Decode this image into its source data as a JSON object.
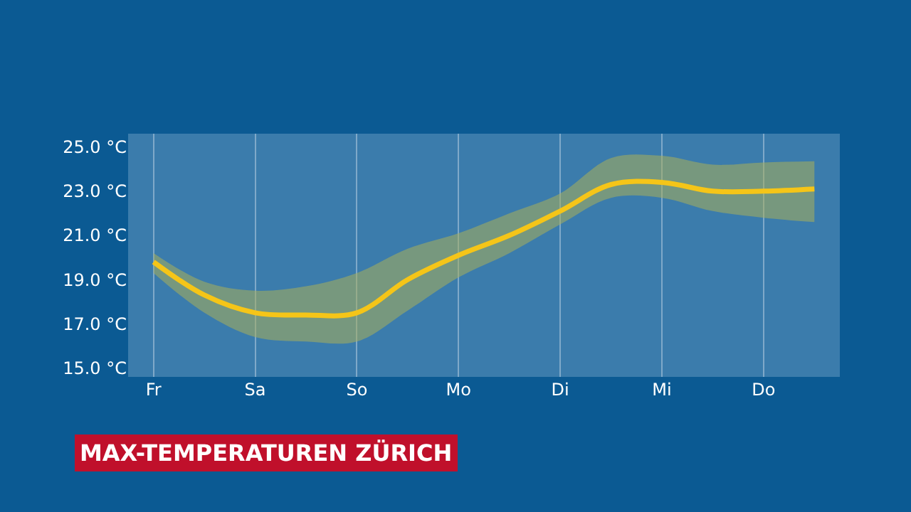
{
  "chart_data": {
    "type": "line",
    "title": "MAX-TEMPERATUREN ZÜRICH",
    "categories": [
      "Fr",
      null,
      "Sa",
      null,
      "So",
      null,
      "Mo",
      null,
      "Di",
      null,
      "Mi",
      null,
      "Do",
      null
    ],
    "series": [
      {
        "color": "#f5c518",
        "values": [
          19.8,
          18.3,
          17.5,
          17.4,
          17.5,
          19.0,
          20.1,
          21.0,
          22.1,
          23.3,
          23.4,
          23.0,
          23.0,
          23.1
        ],
        "lower": [
          19.3,
          17.5,
          16.4,
          16.2,
          16.2,
          17.6,
          19.1,
          20.2,
          21.5,
          22.7,
          22.7,
          22.1,
          21.8,
          21.6
        ],
        "upper": [
          20.2,
          18.9,
          18.5,
          18.7,
          19.3,
          20.4,
          21.1,
          22.0,
          22.9,
          24.5,
          24.6,
          24.2,
          24.3,
          24.35
        ]
      }
    ],
    "ylim": [
      14.6,
      25.6
    ],
    "yticks": [
      {
        "value": 15,
        "label": "15.0 °C"
      },
      {
        "value": 17,
        "label": "17.0 °C"
      },
      {
        "value": 19,
        "label": "19.0 °C"
      },
      {
        "value": 21,
        "label": "21.0 °C"
      },
      {
        "value": 23,
        "label": "23.0 °C"
      },
      {
        "value": 25,
        "label": "25.0 °C"
      }
    ],
    "grid": "x",
    "marker": "none",
    "line_style": "solid"
  }
}
